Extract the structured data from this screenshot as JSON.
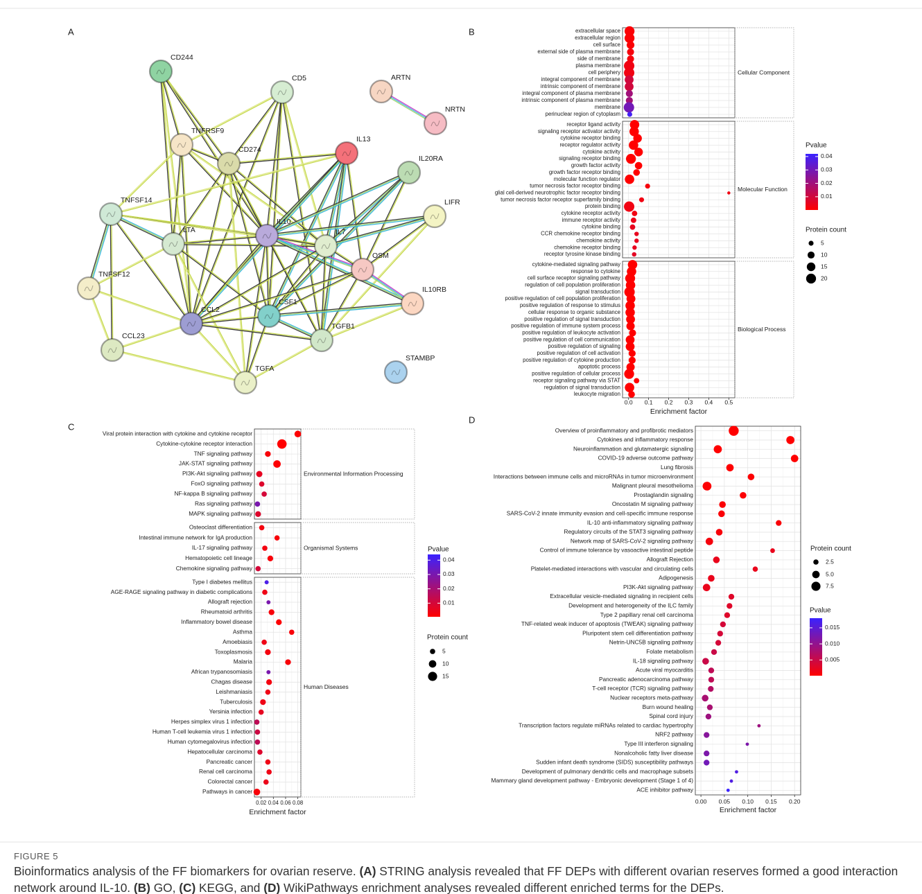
{
  "network": {
    "panel_label": "A",
    "nodes": [
      "CD244",
      "CD5",
      "ARTN",
      "NRTN",
      "TNFRSF9",
      "CD274",
      "IL13",
      "IL20RA",
      "TNFSF14",
      "LIFR",
      "LTA",
      "IL10",
      "IL7",
      "OSM",
      "TNFSF12",
      "IL10RB",
      "CCL2",
      "CSF1",
      "CCL23",
      "TGFB1",
      "STAMBP",
      "TGFA"
    ]
  },
  "chart_data": [
    {
      "type": "scatter",
      "panel_label": "B",
      "xlabel": "Enrichment factor",
      "xlim": [
        -0.03,
        0.53
      ],
      "xticks": [
        {
          "value": 0,
          "label": "0.0"
        },
        0.1,
        0.2,
        0.3,
        0.4,
        0.5
      ],
      "grid": true,
      "groups": [
        {
          "name": "Cellular Component",
          "categories": [
            "extracellular space",
            "extracellular region",
            "cell surface",
            "external side of plasma membrane",
            "side of membrane",
            "plasma membrane",
            "cell periphery",
            "integral component of membrane",
            "intrinsic component of membrane",
            "integral component of plasma membrane",
            "intrinsic component of plasma membrane",
            "membrane",
            "perinuclear region of cytoplasm"
          ],
          "values": [
            0.005,
            0.005,
            0.01,
            0.01,
            0.01,
            0.003,
            0.003,
            0.003,
            0.003,
            0.004,
            0.004,
            0.002,
            0.006
          ],
          "sizes": [
            20,
            20,
            12,
            10,
            10,
            22,
            22,
            16,
            16,
            10,
            10,
            22,
            5
          ],
          "pvalues": [
            0.001,
            0.001,
            0.001,
            0.002,
            0.002,
            0.003,
            0.003,
            0.01,
            0.01,
            0.02,
            0.02,
            0.03,
            0.04
          ]
        },
        {
          "name": "Molecular Function",
          "categories": [
            "receptor ligand activity",
            "signaling receptor activator activity",
            "cytokine receptor binding",
            "receptor regulator activity",
            "cytokine activity",
            "signaling receptor binding",
            "growth factor activity",
            "growth factor receptor binding",
            "molecular function regulator",
            "tumor necrosis factor receptor binding",
            "glial cell-derived neurotrophic factor receptor binding",
            "tumor necrosis factor receptor superfamily binding",
            "protein binding",
            "cytokine receptor activity",
            "immune receptor activity",
            "cytokine binding",
            "CCR chemokine receptor binding",
            "chemokine activity",
            "chemokine receptor binding",
            "receptor tyrosine kinase binding"
          ],
          "values": [
            0.03,
            0.028,
            0.045,
            0.025,
            0.05,
            0.012,
            0.05,
            0.04,
            0.005,
            0.095,
            0.5,
            0.065,
            0.003,
            0.03,
            0.025,
            0.02,
            0.04,
            0.04,
            0.03,
            0.028
          ],
          "sizes": [
            18,
            18,
            15,
            18,
            15,
            20,
            11,
            9,
            18,
            5,
            2,
            5,
            22,
            6,
            6,
            6,
            4,
            4,
            4,
            4
          ],
          "pvalues": [
            0.0001,
            0.0001,
            0.0001,
            0.0001,
            0.0001,
            0.0001,
            0.0001,
            0.0001,
            0.0001,
            0.002,
            0.003,
            0.003,
            0.003,
            0.003,
            0.004,
            0.005,
            0.005,
            0.005,
            0.005,
            0.006
          ]
        },
        {
          "name": "Biological Process",
          "categories": [
            "cytokine-mediated signaling pathway",
            "response to cytokine",
            "cell surface receptor signaling pathway",
            "regulation of cell population proliferation",
            "signal transduction",
            "positive regulation of cell population proliferation",
            "positive regulation of response to stimulus",
            "cellular response to organic substance",
            "positive regulation of signal transduction",
            "positive regulation of immune system process",
            "positive regulation of leukocyte activation",
            "positive regulation of cell communication",
            "positive regulation of signaling",
            "positive regulation of cell activation",
            "positive regulation of cytokine production",
            "apoptotic process",
            "positive regulation of cellular process",
            "receptor signaling pathway via STAT",
            "regulation of signal transduction",
            "leukocyte migration"
          ],
          "values": [
            0.02,
            0.015,
            0.008,
            0.01,
            0.005,
            0.012,
            0.008,
            0.008,
            0.01,
            0.01,
            0.02,
            0.008,
            0.008,
            0.018,
            0.018,
            0.01,
            0.003,
            0.04,
            0.005,
            0.015
          ],
          "sizes": [
            18,
            18,
            20,
            18,
            22,
            16,
            18,
            18,
            16,
            14,
            10,
            16,
            16,
            10,
            10,
            14,
            20,
            6,
            18,
            9
          ],
          "pvalues": [
            0.0001,
            0.0001,
            0.0001,
            0.0001,
            0.0001,
            0.0001,
            0.0001,
            0.0001,
            0.0001,
            0.0001,
            0.0001,
            0.0001,
            0.0001,
            0.0001,
            0.0001,
            0.0001,
            0.0001,
            0.0002,
            0.0001,
            0.0002
          ]
        }
      ],
      "color_legend": {
        "title": "Pvalue",
        "clim": [
          0.0001,
          0.042
        ],
        "ticks": [
          0.01,
          0.02,
          0.03,
          0.04
        ],
        "colors": [
          "#ff0000",
          "#3a22ff"
        ]
      },
      "size_legend": {
        "title": "Protein count",
        "values": [
          5,
          10,
          15,
          20
        ]
      }
    },
    {
      "type": "scatter",
      "panel_label": "C",
      "xlabel": "Enrichment factor",
      "xlim": [
        0.009,
        0.085
      ],
      "xticks": [
        0.02,
        0.04,
        0.06,
        0.08
      ],
      "grid": true,
      "groups": [
        {
          "name": "Environmental Information Processing",
          "categories": [
            "Viral protein interaction with cytokine and cytokine receptor",
            "Cytokine-cytokine receptor interaction",
            "TNF signaling pathway",
            "JAK-STAT signaling pathway",
            "PI3K-Akt signaling pathway",
            "FoxO signaling pathway",
            "NF-kappa B signaling pathway",
            "Ras signaling pathway",
            "MAPK signaling pathway"
          ],
          "values": [
            0.08,
            0.054,
            0.031,
            0.046,
            0.017,
            0.021,
            0.025,
            0.014,
            0.015
          ],
          "sizes": [
            8,
            16,
            6,
            10,
            7,
            5,
            5,
            5,
            6
          ],
          "pvalues": [
            0.001,
            0.0005,
            0.002,
            0.001,
            0.006,
            0.008,
            0.01,
            0.03,
            0.008
          ]
        },
        {
          "name": "Organismal Systems",
          "categories": [
            "Osteoclast differentiation",
            "Intestinal immune network for IgA production",
            "IL-17 signaling pathway",
            "Hematopoietic cell lineage",
            "Chemokine signaling pathway"
          ],
          "values": [
            0.021,
            0.046,
            0.026,
            0.035,
            0.015
          ],
          "sizes": [
            5,
            5,
            5,
            6,
            5
          ],
          "pvalues": [
            0.003,
            0.002,
            0.003,
            0.002,
            0.01
          ]
        },
        {
          "name": "Human Diseases",
          "categories": [
            "Type I diabetes mellitus",
            "AGE-RAGE signaling pathway in diabetic complications",
            "Allograft rejection",
            "Rheumatoid arthritis",
            "Inflammatory bowel disease",
            "Asthma",
            "Amoebiasis",
            "Toxoplasmosis",
            "Malaria",
            "African trypanosomiasis",
            "Chagas disease",
            "Leishmaniasis",
            "Tuberculosis",
            "Yersinia infection",
            "Herpes simplex virus 1 infection",
            "Human T-cell leukemia virus 1 infection",
            "Human cytomegalovirus infection",
            "Hepatocellular carcinoma",
            "Pancreatic cancer",
            "Renal cell carcinoma",
            "Colorectal cancer",
            "Pathways in cancer"
          ],
          "values": [
            0.029,
            0.026,
            0.032,
            0.037,
            0.049,
            0.07,
            0.025,
            0.031,
            0.064,
            0.032,
            0.033,
            0.031,
            0.023,
            0.02,
            0.013,
            0.014,
            0.014,
            0.018,
            0.031,
            0.033,
            0.028,
            0.013
          ],
          "sizes": [
            3,
            5,
            3,
            6,
            6,
            5,
            5,
            6,
            6,
            3,
            6,
            5,
            6,
            5,
            5,
            5,
            5,
            5,
            5,
            5,
            5,
            8
          ],
          "pvalues": [
            0.04,
            0.004,
            0.03,
            0.002,
            0.001,
            0.002,
            0.004,
            0.003,
            0.002,
            0.03,
            0.003,
            0.004,
            0.004,
            0.006,
            0.015,
            0.012,
            0.015,
            0.008,
            0.004,
            0.004,
            0.005,
            0.002
          ]
        }
      ],
      "color_legend": {
        "title": "Pvalue",
        "clim": [
          0.0005,
          0.044
        ],
        "ticks": [
          0.01,
          0.02,
          0.03,
          0.04
        ],
        "colors": [
          "#ff0000",
          "#3a22ff"
        ]
      },
      "size_legend": {
        "title": "Protein count",
        "values": [
          5,
          10,
          15
        ]
      }
    },
    {
      "type": "scatter",
      "panel_label": "D",
      "xlabel": "Enrichment factor",
      "xlim": [
        -0.012,
        0.213
      ],
      "xticks": [
        {
          "value": 0,
          "label": "0.00"
        },
        0.05,
        {
          "value": 0.1,
          "label": "0.10"
        },
        0.15,
        {
          "value": 0.2,
          "label": "0.20"
        }
      ],
      "grid": true,
      "groups": [
        {
          "categories": [
            "Overview of proinflammatory and profibrotic mediators",
            "Cytokines and inflammatory response",
            "Neuroinflammation and glutamatergic signaling",
            "COVID-19 adverse outcome pathway",
            "Lung fibrosis",
            "Interactions between immune cells and microRNAs in tumor microenvironment",
            "Malignant pleural mesothelioma",
            "Prostaglandin signaling",
            "Oncostatin M signaling pathway",
            "SARS-CoV-2 innate immunity evasion and cell-specific immune response",
            "IL-10 anti-inflammatory signaling pathway",
            "Regulatory circuits of the STAT3 signaling pathway",
            "Network map of SARS-CoV-2 signaling pathway",
            "Control of immune tolerance by vasoactive intestinal peptide",
            "Allograft Rejection",
            "Platelet-mediated interactions with vascular and circulating cells",
            "Adipogenesis",
            "PI3K-Akt signaling pathway",
            "Extracellular vesicle-mediated signaling in recipient cells",
            "Development and heterogeneity of the ILC family",
            "Type 2 papillary renal cell carcinoma",
            "TNF-related weak inducer of apoptosis (TWEAK) signaling pathway",
            "Pluripotent stem cell differentiation pathway",
            "Netrin-UNC5B signaling pathway",
            "Folate metabolism",
            "IL-18 signaling pathway",
            "Acute viral myocarditis",
            "Pancreatic adenocarcinoma pathway",
            "T-cell receptor (TCR) signaling pathway",
            "Nuclear receptors meta-pathway",
            "Burn wound healing",
            "Spinal cord injury",
            "Transcription factors regulate miRNAs related to cardiac hypertrophy",
            "NRF2 pathway",
            "Type III interferon signaling",
            "Nonalcoholic fatty liver disease",
            "Sudden infant death syndrome (SIDS) susceptibility pathways",
            "Development of pulmonary dendritic cells and macrophage subsets",
            "Mammary gland development pathway - Embryonic development (Stage 1 of 4)",
            "ACE inhibitor pathway"
          ],
          "values": [
            0.07,
            0.191,
            0.036,
            0.2,
            0.062,
            0.107,
            0.013,
            0.09,
            0.046,
            0.044,
            0.166,
            0.039,
            0.018,
            0.153,
            0.033,
            0.116,
            0.022,
            0.012,
            0.065,
            0.061,
            0.056,
            0.047,
            0.041,
            0.037,
            0.028,
            0.01,
            0.022,
            0.022,
            0.021,
            0.009,
            0.019,
            0.016,
            0.124,
            0.012,
            0.099,
            0.012,
            0.012,
            0.076,
            0.065,
            0.058
          ],
          "sizes": [
            9,
            6,
            6,
            5,
            5,
            4,
            7,
            4,
            4,
            4,
            3,
            4,
            5,
            2,
            4,
            2.5,
            4,
            5,
            3,
            3,
            3,
            3,
            3,
            3,
            3,
            4,
            3,
            3,
            3,
            4,
            3,
            3,
            1,
            3,
            1,
            3,
            3,
            1,
            1,
            1
          ],
          "pvalues": [
            0.0001,
            0.0001,
            0.0001,
            0.0001,
            0.0002,
            0.0003,
            0.0003,
            0.0004,
            0.0005,
            0.0005,
            0.0006,
            0.0007,
            0.001,
            0.002,
            0.002,
            0.002,
            0.002,
            0.002,
            0.003,
            0.003,
            0.003,
            0.004,
            0.004,
            0.004,
            0.005,
            0.005,
            0.006,
            0.006,
            0.007,
            0.008,
            0.008,
            0.009,
            0.009,
            0.011,
            0.012,
            0.012,
            0.013,
            0.016,
            0.016,
            0.018
          ]
        }
      ],
      "color_legend": {
        "title": "Pvalue",
        "clim": [
          0.0001,
          0.018
        ],
        "ticks": [
          0.005,
          {
            "value": 0.01,
            "label": "0.010"
          },
          0.015
        ],
        "colors": [
          "#ff0000",
          "#3a22ff"
        ]
      },
      "size_legend": {
        "title": "Protein count",
        "values": [
          2.5,
          {
            "value": 5,
            "label": "5.0"
          },
          7.5
        ]
      }
    }
  ],
  "caption": {
    "figure_label": "FIGURE 5",
    "parts": [
      {
        "text": "Bioinformatics analysis of the FF biomarkers for ovarian reserve. ",
        "bold": false
      },
      {
        "text": "(A)",
        "bold": true
      },
      {
        "text": " STRING analysis revealed that FF DEPs with different ovarian reserves formed a good interaction network around IL-10. ",
        "bold": false
      },
      {
        "text": "(B)",
        "bold": true
      },
      {
        "text": " GO, ",
        "bold": false
      },
      {
        "text": "(C)",
        "bold": true
      },
      {
        "text": " KEGG, and ",
        "bold": false
      },
      {
        "text": "(D)",
        "bold": true
      },
      {
        "text": " WikiPathways enrichment analyses revealed different enriched terms for the DEPs.",
        "bold": false
      }
    ]
  }
}
